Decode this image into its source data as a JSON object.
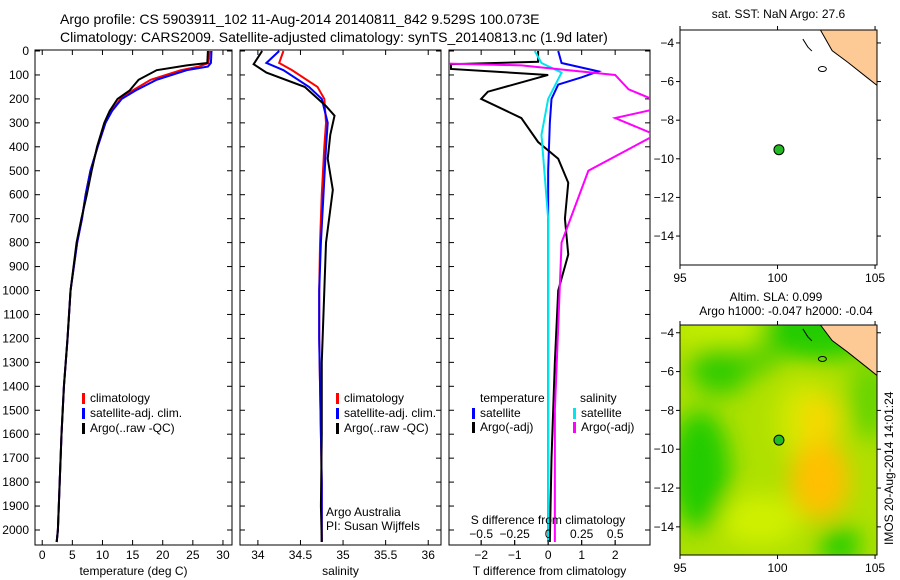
{
  "title_line1": "Argo profile: CS 5903911_102 11-Aug-2014 20140811_842 9.529S 100.073E",
  "title_line2": "Climatology: CARS2009. Satellite-adjusted climatology: synTS_20140813.nc (1.9d later)",
  "side_label": "IMOS 20-Aug-2014 14:01:24",
  "colors": {
    "climatology": "#ff0000",
    "satellite": "#0000ff",
    "argo": "#000000",
    "sal_satellite": "#00e5ee",
    "sal_argo": "#ff00ff",
    "land": "#fdca96",
    "float_marker": "#22bb22"
  },
  "chart_data": [
    {
      "id": "temperature",
      "type": "line",
      "xlabel": "temperature (deg C)",
      "ylabel": "",
      "xlim": [
        -1.2,
        31.5
      ],
      "ylim": [
        2050,
        0
      ],
      "xticks": [
        0,
        5,
        10,
        15,
        20,
        25,
        30
      ],
      "yticks": [
        0,
        100,
        200,
        300,
        400,
        500,
        600,
        700,
        800,
        900,
        1000,
        1100,
        1200,
        1300,
        1400,
        1500,
        1600,
        1700,
        1800,
        1900,
        2000
      ],
      "legend": [
        "climatology",
        "satellite-adj. clim.",
        "Argo(..raw -QC)"
      ],
      "legend_position": "lower-right",
      "series": [
        {
          "name": "climatology",
          "color": "#ff0000",
          "x": [
            27.8,
            27.6,
            26,
            23,
            18,
            15,
            13,
            11.5,
            10.5,
            9.2,
            8,
            7.2,
            6.6,
            5.8,
            4.7,
            4.2,
            3.6,
            3.2,
            2.9,
            2.6,
            2.4
          ],
          "y": [
            0,
            50,
            65,
            80,
            120,
            165,
            200,
            250,
            300,
            400,
            500,
            600,
            700,
            800,
            1000,
            1200,
            1400,
            1600,
            1800,
            2000,
            2050
          ]
        },
        {
          "name": "satellite-adj. clim.",
          "color": "#0000ff",
          "x": [
            28.1,
            28,
            27.5,
            24,
            19,
            15.5,
            13.2,
            11.6,
            10.5,
            9.2,
            8,
            7.2,
            6.6,
            5.8,
            4.7,
            4.2,
            3.6,
            3.2,
            2.9,
            2.6,
            2.4
          ],
          "y": [
            0,
            50,
            65,
            80,
            120,
            165,
            200,
            250,
            300,
            400,
            500,
            600,
            700,
            800,
            1000,
            1200,
            1400,
            1600,
            1800,
            2000,
            2050
          ]
        },
        {
          "name": "Argo",
          "color": "#000000",
          "x": [
            27.5,
            27.4,
            24,
            19,
            16,
            14.5,
            12.5,
            11.2,
            10.3,
            9.1,
            8.2,
            7.4,
            6.5,
            5.7,
            4.7,
            4.2,
            3.6,
            3.2,
            2.9,
            2.6,
            2.4
          ],
          "y": [
            0,
            50,
            60,
            80,
            120,
            165,
            200,
            250,
            300,
            400,
            500,
            600,
            700,
            800,
            1000,
            1200,
            1400,
            1600,
            1800,
            2000,
            2050
          ]
        }
      ]
    },
    {
      "id": "salinity",
      "type": "line",
      "xlabel": "salinity",
      "xlim": [
        33.79,
        36.15
      ],
      "ylim": [
        2050,
        0
      ],
      "xticks": [
        34,
        34.5,
        35,
        35.5,
        36
      ],
      "legend": [
        "climatology",
        "satellite-adj. clim.",
        "Argo(..raw -QC)"
      ],
      "legend_position": "lower-right",
      "annotation": [
        "Argo Australia",
        "PI: Susan Wijffels"
      ],
      "series": [
        {
          "name": "climatology",
          "color": "#ff0000",
          "x": [
            34.3,
            34.25,
            34.4,
            34.7,
            34.78,
            34.8,
            34.78,
            34.75,
            34.73,
            34.72,
            34.72,
            34.73,
            34.74,
            34.75,
            34.75
          ],
          "y": [
            0,
            50,
            80,
            150,
            200,
            300,
            400,
            600,
            800,
            1000,
            1200,
            1400,
            1600,
            1800,
            2050
          ]
        },
        {
          "name": "satellite-adj. clim.",
          "color": "#0000ff",
          "x": [
            34.25,
            34.1,
            34.3,
            34.6,
            34.75,
            34.82,
            34.8,
            34.77,
            34.74,
            34.72,
            34.72,
            34.73,
            34.74,
            34.75,
            34.75
          ],
          "y": [
            0,
            50,
            80,
            150,
            200,
            300,
            400,
            600,
            800,
            1000,
            1200,
            1400,
            1600,
            1800,
            2050
          ]
        },
        {
          "name": "Argo",
          "color": "#000000",
          "x": [
            34.05,
            33.95,
            34.1,
            34.55,
            34.8,
            34.9,
            34.85,
            34.82,
            34.88,
            34.8,
            34.78,
            34.75,
            34.75,
            34.74,
            34.75
          ],
          "y": [
            0,
            55,
            90,
            150,
            230,
            270,
            350,
            450,
            580,
            800,
            1000,
            1300,
            1600,
            1900,
            2050
          ]
        }
      ]
    },
    {
      "id": "differences",
      "type": "line",
      "xlabel": "T difference from climatology",
      "x2label": "S difference from climatology",
      "xlim": [
        -2.96,
        3.04
      ],
      "ylim": [
        2050,
        0
      ],
      "xticks": [
        -2,
        -1,
        0,
        1,
        2
      ],
      "x2ticks": [
        -0.5,
        -0.25,
        0,
        0.25,
        0.5
      ],
      "legend_temperature": {
        "title": "temperature",
        "items": [
          "satellite",
          "Argo(-adj)"
        ]
      },
      "legend_salinity": {
        "title": "salinity",
        "items": [
          "satellite",
          "Argo(-adj)"
        ]
      },
      "series": [
        {
          "name": "T satellite",
          "color": "#0000ff",
          "x": [
            0.3,
            0.4,
            1.5,
            1.0,
            0.3,
            0.1,
            0.05,
            0,
            0,
            0,
            0
          ],
          "y": [
            0,
            50,
            85,
            110,
            140,
            200,
            300,
            500,
            1000,
            1500,
            2050
          ]
        },
        {
          "name": "T Argo(-adj)",
          "color": "#000000",
          "x": [
            -0.3,
            -0.3,
            -2.9,
            -2.9,
            0,
            -1.8,
            -2.0,
            -0.8,
            -0.3,
            0.3,
            0.6,
            0.5,
            0.6,
            0.3,
            0.2,
            0.1,
            0.05
          ],
          "y": [
            0,
            45,
            55,
            75,
            100,
            170,
            200,
            280,
            380,
            450,
            550,
            700,
            850,
            1000,
            1300,
            1700,
            2050
          ]
        },
        {
          "name": "S satellite",
          "color": "#00e5ee",
          "x": [
            -0.1,
            -0.05,
            0.1,
            0.0,
            -0.05,
            0,
            0,
            0
          ],
          "y": [
            0,
            50,
            90,
            200,
            350,
            700,
            1400,
            2050
          ]
        },
        {
          "name": "S Argo(-adj)",
          "color": "#ff00ff",
          "x": [
            -1.7,
            -1.7,
            -0.2,
            0.5,
            0.6,
            0.9,
            0.5,
            0.8,
            0.3,
            0.1,
            0.05,
            0.05
          ],
          "y": [
            0,
            40,
            60,
            100,
            160,
            230,
            280,
            350,
            500,
            800,
            1500,
            2050
          ]
        }
      ]
    },
    {
      "id": "sst_map",
      "type": "map",
      "title": "sat. SST: NaN Argo: 27.6",
      "xlim": [
        95,
        105.1
      ],
      "ylim": [
        -15.5,
        -3.33
      ],
      "xticks": [
        95,
        100,
        105
      ],
      "yticks": [
        -4,
        -6,
        -8,
        -10,
        -12,
        -14
      ],
      "float_position": {
        "lon": 100.073,
        "lat": -9.529
      }
    },
    {
      "id": "sla_map",
      "type": "heatmap",
      "title_line1": "Altim. SLA: 0.099",
      "title_line2": "Argo h1000: -0.047 h2000: -0.04",
      "xlim": [
        95,
        105.1
      ],
      "ylim": [
        -15.45,
        -3.6
      ],
      "xticks": [
        95,
        100,
        105
      ],
      "yticks": [
        -4,
        -6,
        -8,
        -10,
        -12,
        -14
      ],
      "float_position": {
        "lon": 100.073,
        "lat": -9.529
      }
    }
  ]
}
